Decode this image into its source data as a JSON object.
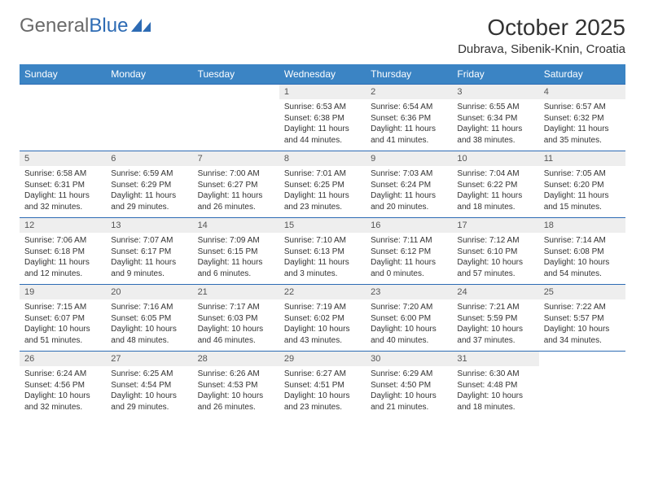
{
  "brand": {
    "part1": "General",
    "part2": "Blue"
  },
  "title": "October 2025",
  "location": "Dubrava, Sibenik-Knin, Croatia",
  "colors": {
    "header_bg": "#3b84c4",
    "header_text": "#ffffff",
    "daynum_bg": "#eeeeee",
    "border": "#2d6bb4",
    "text": "#333333",
    "logo_gray": "#6a6a6a",
    "logo_blue": "#2d6bb4",
    "page_bg": "#ffffff"
  },
  "fonts": {
    "base_family": "Arial",
    "title_size_pt": 21,
    "location_size_pt": 11,
    "header_size_pt": 9,
    "cell_size_pt": 7.5
  },
  "day_headers": [
    "Sunday",
    "Monday",
    "Tuesday",
    "Wednesday",
    "Thursday",
    "Friday",
    "Saturday"
  ],
  "weeks": [
    [
      null,
      null,
      null,
      {
        "n": "1",
        "sr": "Sunrise: 6:53 AM",
        "ss": "Sunset: 6:38 PM",
        "d1": "Daylight: 11 hours",
        "d2": "and 44 minutes."
      },
      {
        "n": "2",
        "sr": "Sunrise: 6:54 AM",
        "ss": "Sunset: 6:36 PM",
        "d1": "Daylight: 11 hours",
        "d2": "and 41 minutes."
      },
      {
        "n": "3",
        "sr": "Sunrise: 6:55 AM",
        "ss": "Sunset: 6:34 PM",
        "d1": "Daylight: 11 hours",
        "d2": "and 38 minutes."
      },
      {
        "n": "4",
        "sr": "Sunrise: 6:57 AM",
        "ss": "Sunset: 6:32 PM",
        "d1": "Daylight: 11 hours",
        "d2": "and 35 minutes."
      }
    ],
    [
      {
        "n": "5",
        "sr": "Sunrise: 6:58 AM",
        "ss": "Sunset: 6:31 PM",
        "d1": "Daylight: 11 hours",
        "d2": "and 32 minutes."
      },
      {
        "n": "6",
        "sr": "Sunrise: 6:59 AM",
        "ss": "Sunset: 6:29 PM",
        "d1": "Daylight: 11 hours",
        "d2": "and 29 minutes."
      },
      {
        "n": "7",
        "sr": "Sunrise: 7:00 AM",
        "ss": "Sunset: 6:27 PM",
        "d1": "Daylight: 11 hours",
        "d2": "and 26 minutes."
      },
      {
        "n": "8",
        "sr": "Sunrise: 7:01 AM",
        "ss": "Sunset: 6:25 PM",
        "d1": "Daylight: 11 hours",
        "d2": "and 23 minutes."
      },
      {
        "n": "9",
        "sr": "Sunrise: 7:03 AM",
        "ss": "Sunset: 6:24 PM",
        "d1": "Daylight: 11 hours",
        "d2": "and 20 minutes."
      },
      {
        "n": "10",
        "sr": "Sunrise: 7:04 AM",
        "ss": "Sunset: 6:22 PM",
        "d1": "Daylight: 11 hours",
        "d2": "and 18 minutes."
      },
      {
        "n": "11",
        "sr": "Sunrise: 7:05 AM",
        "ss": "Sunset: 6:20 PM",
        "d1": "Daylight: 11 hours",
        "d2": "and 15 minutes."
      }
    ],
    [
      {
        "n": "12",
        "sr": "Sunrise: 7:06 AM",
        "ss": "Sunset: 6:18 PM",
        "d1": "Daylight: 11 hours",
        "d2": "and 12 minutes."
      },
      {
        "n": "13",
        "sr": "Sunrise: 7:07 AM",
        "ss": "Sunset: 6:17 PM",
        "d1": "Daylight: 11 hours",
        "d2": "and 9 minutes."
      },
      {
        "n": "14",
        "sr": "Sunrise: 7:09 AM",
        "ss": "Sunset: 6:15 PM",
        "d1": "Daylight: 11 hours",
        "d2": "and 6 minutes."
      },
      {
        "n": "15",
        "sr": "Sunrise: 7:10 AM",
        "ss": "Sunset: 6:13 PM",
        "d1": "Daylight: 11 hours",
        "d2": "and 3 minutes."
      },
      {
        "n": "16",
        "sr": "Sunrise: 7:11 AM",
        "ss": "Sunset: 6:12 PM",
        "d1": "Daylight: 11 hours",
        "d2": "and 0 minutes."
      },
      {
        "n": "17",
        "sr": "Sunrise: 7:12 AM",
        "ss": "Sunset: 6:10 PM",
        "d1": "Daylight: 10 hours",
        "d2": "and 57 minutes."
      },
      {
        "n": "18",
        "sr": "Sunrise: 7:14 AM",
        "ss": "Sunset: 6:08 PM",
        "d1": "Daylight: 10 hours",
        "d2": "and 54 minutes."
      }
    ],
    [
      {
        "n": "19",
        "sr": "Sunrise: 7:15 AM",
        "ss": "Sunset: 6:07 PM",
        "d1": "Daylight: 10 hours",
        "d2": "and 51 minutes."
      },
      {
        "n": "20",
        "sr": "Sunrise: 7:16 AM",
        "ss": "Sunset: 6:05 PM",
        "d1": "Daylight: 10 hours",
        "d2": "and 48 minutes."
      },
      {
        "n": "21",
        "sr": "Sunrise: 7:17 AM",
        "ss": "Sunset: 6:03 PM",
        "d1": "Daylight: 10 hours",
        "d2": "and 46 minutes."
      },
      {
        "n": "22",
        "sr": "Sunrise: 7:19 AM",
        "ss": "Sunset: 6:02 PM",
        "d1": "Daylight: 10 hours",
        "d2": "and 43 minutes."
      },
      {
        "n": "23",
        "sr": "Sunrise: 7:20 AM",
        "ss": "Sunset: 6:00 PM",
        "d1": "Daylight: 10 hours",
        "d2": "and 40 minutes."
      },
      {
        "n": "24",
        "sr": "Sunrise: 7:21 AM",
        "ss": "Sunset: 5:59 PM",
        "d1": "Daylight: 10 hours",
        "d2": "and 37 minutes."
      },
      {
        "n": "25",
        "sr": "Sunrise: 7:22 AM",
        "ss": "Sunset: 5:57 PM",
        "d1": "Daylight: 10 hours",
        "d2": "and 34 minutes."
      }
    ],
    [
      {
        "n": "26",
        "sr": "Sunrise: 6:24 AM",
        "ss": "Sunset: 4:56 PM",
        "d1": "Daylight: 10 hours",
        "d2": "and 32 minutes."
      },
      {
        "n": "27",
        "sr": "Sunrise: 6:25 AM",
        "ss": "Sunset: 4:54 PM",
        "d1": "Daylight: 10 hours",
        "d2": "and 29 minutes."
      },
      {
        "n": "28",
        "sr": "Sunrise: 6:26 AM",
        "ss": "Sunset: 4:53 PM",
        "d1": "Daylight: 10 hours",
        "d2": "and 26 minutes."
      },
      {
        "n": "29",
        "sr": "Sunrise: 6:27 AM",
        "ss": "Sunset: 4:51 PM",
        "d1": "Daylight: 10 hours",
        "d2": "and 23 minutes."
      },
      {
        "n": "30",
        "sr": "Sunrise: 6:29 AM",
        "ss": "Sunset: 4:50 PM",
        "d1": "Daylight: 10 hours",
        "d2": "and 21 minutes."
      },
      {
        "n": "31",
        "sr": "Sunrise: 6:30 AM",
        "ss": "Sunset: 4:48 PM",
        "d1": "Daylight: 10 hours",
        "d2": "and 18 minutes."
      },
      null
    ]
  ]
}
